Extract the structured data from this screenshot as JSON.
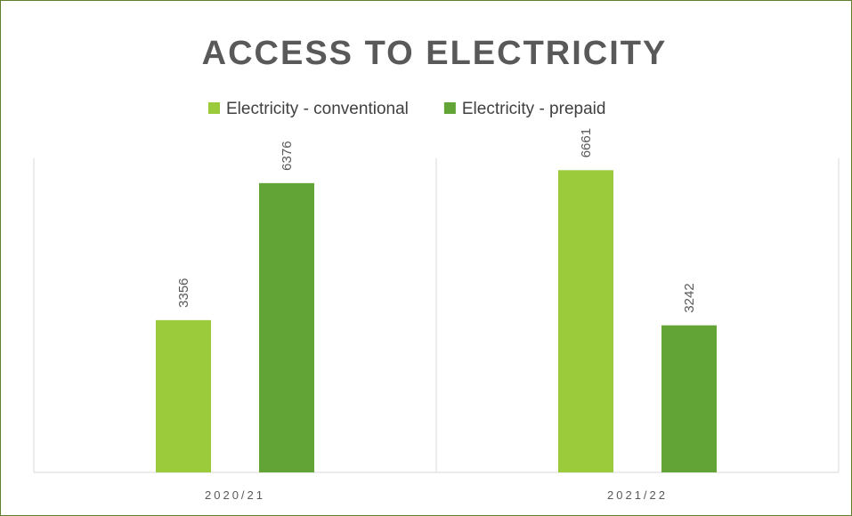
{
  "chart_data": {
    "type": "bar",
    "title": "ACCESS TO ELECTRICITY",
    "categories": [
      "2020/21",
      "2021/22"
    ],
    "series": [
      {
        "name": "Electricity - conventional",
        "values": [
          3356,
          6661
        ],
        "color": "#9bcb3b"
      },
      {
        "name": "Electricity - prepaid",
        "values": [
          6376,
          3242
        ],
        "color": "#63a436"
      }
    ],
    "ylim": [
      0,
      7000
    ],
    "xlabel": "",
    "ylabel": "",
    "grid": false,
    "legend_position": "top",
    "data_labels": true
  }
}
